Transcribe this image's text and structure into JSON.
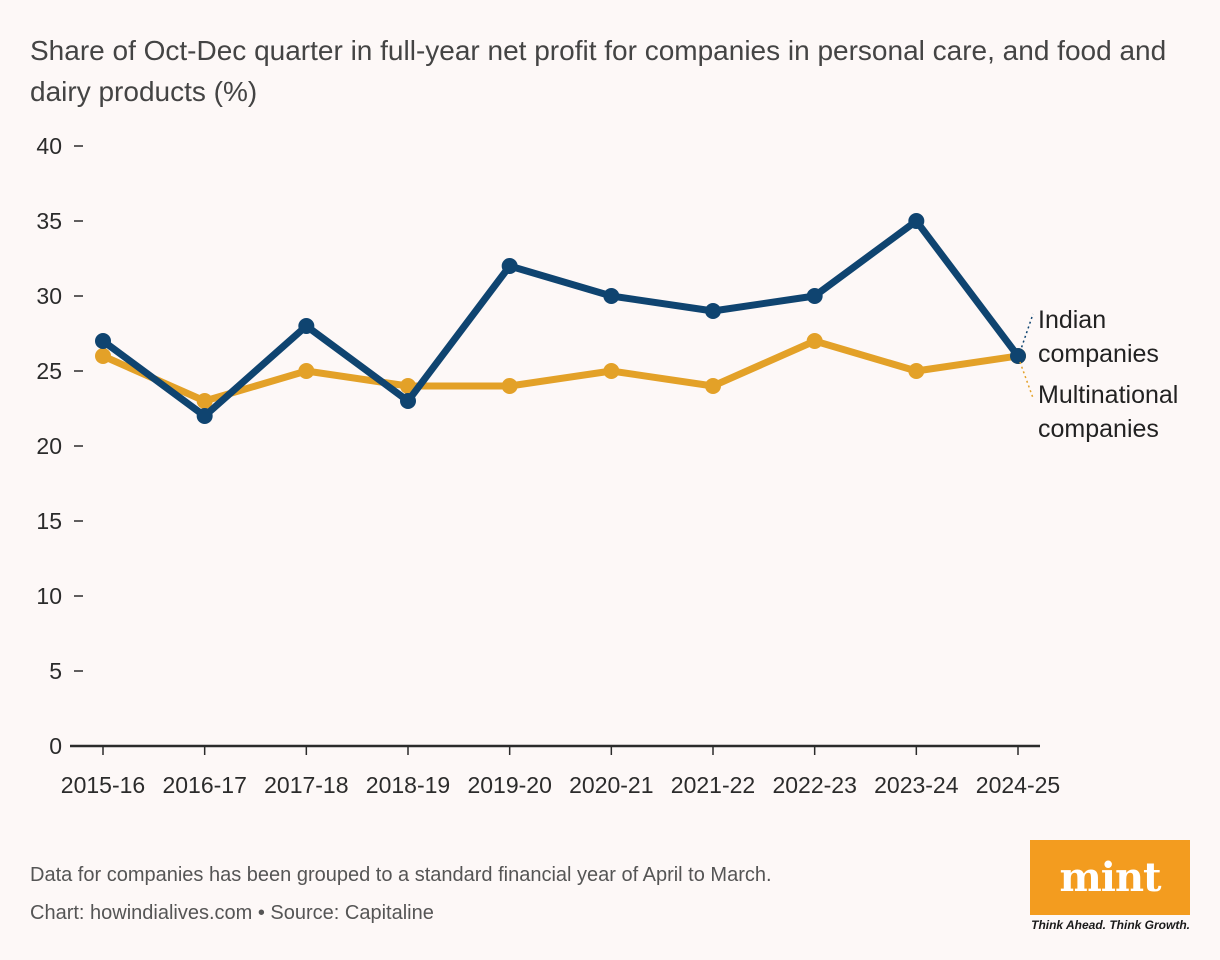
{
  "title": "Share of Oct-Dec quarter in full-year net profit for companies in personal care, and food and dairy products (%)",
  "chart_data": {
    "type": "line",
    "categories": [
      "2015-16",
      "2016-17",
      "2017-18",
      "2018-19",
      "2019-20",
      "2020-21",
      "2021-22",
      "2022-23",
      "2023-24",
      "2024-25"
    ],
    "series": [
      {
        "name": "Indian companies",
        "color": "#0f4470",
        "values": [
          27,
          22,
          28,
          23,
          32,
          30,
          29,
          30,
          35,
          26
        ]
      },
      {
        "name": "Multinational companies",
        "color": "#e3a128",
        "values": [
          26,
          23,
          25,
          24,
          24,
          25,
          24,
          27,
          25,
          26
        ]
      }
    ],
    "yticks": [
      0,
      5,
      10,
      15,
      20,
      25,
      30,
      35,
      40
    ],
    "ylim": [
      0,
      40
    ],
    "xlabel": "",
    "ylabel": "",
    "grid": false,
    "legend": "direct labels at right end of lines"
  },
  "labels": {
    "indian_line1": "Indian",
    "indian_line2": "companies",
    "mnc_line1": "Multinational",
    "mnc_line2": "companies"
  },
  "footer": {
    "note": "Data for companies has been grouped to a standard financial year of April to March.",
    "credit": "Chart: howindialives.com • Source: Capitaline"
  },
  "logo": {
    "word": "mint",
    "tagline": "Think Ahead. Think Growth.",
    "color": "#f39c1f"
  }
}
